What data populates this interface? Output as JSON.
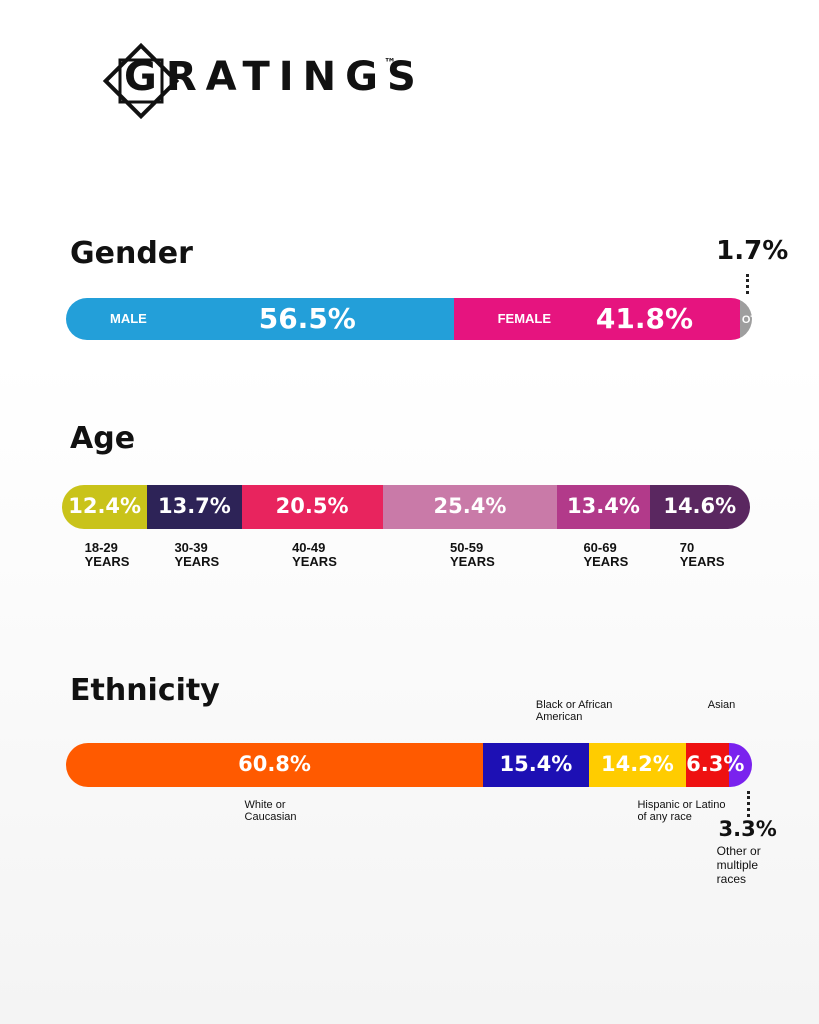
{
  "brand": {
    "name": "GRATINGS",
    "mark": "™"
  },
  "chart_data": [
    {
      "type": "stacked-bar",
      "title": "Gender",
      "categories": [
        "MALE",
        "FEMALE",
        "OTHER"
      ],
      "values": [
        56.5,
        41.8,
        1.7
      ],
      "value_labels": [
        "56.5%",
        "41.8%",
        "1.7%"
      ],
      "colors": [
        "#239fd9",
        "#e6147f",
        "#9e9e9e"
      ]
    },
    {
      "type": "stacked-bar",
      "title": "Age",
      "categories": [
        "18-29 YEARS",
        "30-39 YEARS",
        "40-49 YEARS",
        "50-59 YEARS",
        "60-69 YEARS",
        "70 YEARS"
      ],
      "values": [
        12.4,
        13.7,
        20.5,
        25.4,
        13.4,
        14.6
      ],
      "value_labels": [
        "12.4%",
        "13.7%",
        "20.5%",
        "25.4%",
        "13.4%",
        "14.6%"
      ],
      "colors": [
        "#c9c31a",
        "#2d2357",
        "#e8245e",
        "#c97aa8",
        "#b23a8a",
        "#5a2760"
      ]
    },
    {
      "type": "stacked-bar",
      "title": "Ethnicity",
      "categories": [
        "White or Caucasian",
        "Black or African American",
        "Hispanic or Latino of any race",
        "Asian",
        "Other or multiple races"
      ],
      "values": [
        60.8,
        15.4,
        14.2,
        6.3,
        3.3
      ],
      "value_labels": [
        "60.8%",
        "15.4%",
        "14.2%",
        "6.3%",
        "3.3%"
      ],
      "colors": [
        "#ff5a00",
        "#1d10b4",
        "#ffcc00",
        "#ee1111",
        "#7a22ee"
      ]
    }
  ]
}
